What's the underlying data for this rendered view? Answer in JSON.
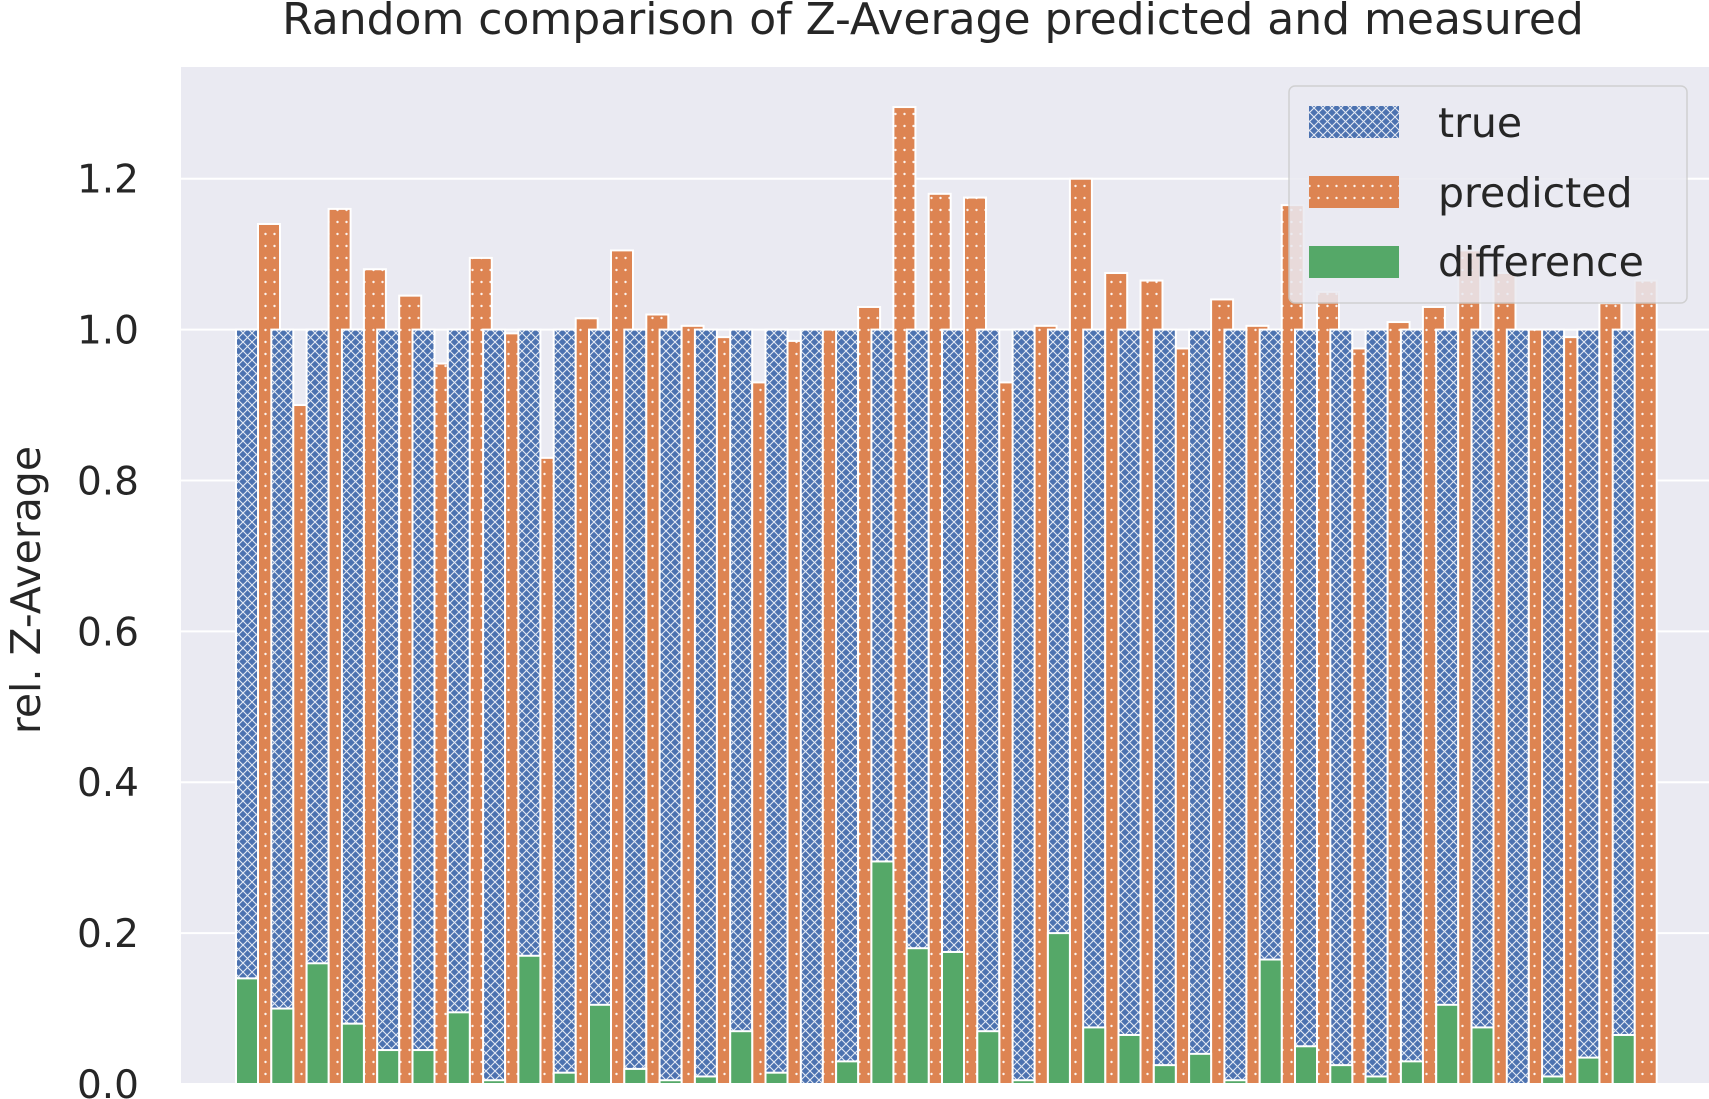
{
  "chart_data": {
    "type": "bar",
    "title": "Random comparison of Z-Average predicted and measured",
    "xlabel": "",
    "ylabel": "rel. Z-Average",
    "ylim": [
      0,
      1.35
    ],
    "yticks": [
      "0.0",
      "0.2",
      "0.4",
      "0.6",
      "0.8",
      "1.0",
      "1.2"
    ],
    "grid": true,
    "legend_position": "top-right",
    "colors": {
      "true": "#4c72b0",
      "predicted": "#dd8452",
      "difference": "#55a868",
      "background": "#eaeaf2",
      "grid": "#ffffff"
    },
    "series": [
      {
        "name": "true",
        "pattern": "crosshatch",
        "values": [
          1,
          1,
          1,
          1,
          1,
          1,
          1,
          1,
          1,
          1,
          1,
          1,
          1,
          1,
          1,
          1,
          1,
          1,
          1,
          1,
          1,
          1,
          1,
          1,
          1,
          1,
          1,
          1,
          1,
          1,
          1,
          1,
          1,
          1,
          1,
          1,
          1,
          1,
          1,
          1
        ]
      },
      {
        "name": "predicted",
        "pattern": "dots",
        "values": [
          1.14,
          0.9,
          1.16,
          1.08,
          1.045,
          0.955,
          1.095,
          0.995,
          0.83,
          1.015,
          1.105,
          1.02,
          1.005,
          0.99,
          0.93,
          0.985,
          1.0,
          1.03,
          1.295,
          1.18,
          1.175,
          0.93,
          1.005,
          1.2,
          1.075,
          1.065,
          0.975,
          1.04,
          1.005,
          1.165,
          1.05,
          0.975,
          1.01,
          1.03,
          1.105,
          1.075,
          1.0,
          0.99,
          1.035,
          1.065
        ]
      },
      {
        "name": "difference",
        "pattern": "solid",
        "values": [
          0.14,
          0.1,
          0.16,
          0.08,
          0.045,
          0.045,
          0.095,
          0.005,
          0.17,
          0.015,
          0.105,
          0.02,
          0.005,
          0.01,
          0.07,
          0.015,
          0.0,
          0.03,
          0.295,
          0.18,
          0.175,
          0.07,
          0.005,
          0.2,
          0.075,
          0.065,
          0.025,
          0.04,
          0.005,
          0.165,
          0.05,
          0.025,
          0.01,
          0.03,
          0.105,
          0.075,
          0.0,
          0.01,
          0.035,
          0.065
        ]
      }
    ]
  }
}
